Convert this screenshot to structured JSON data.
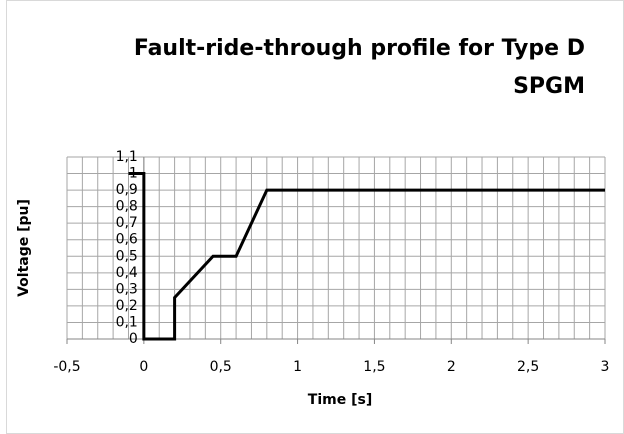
{
  "chart_data": {
    "type": "line",
    "title": "Fault-ride-through profile for  Type D SPGM",
    "x_label": "Time [s]",
    "y_label": "Voltage [pu]",
    "series": [
      {
        "name": "Voltage",
        "color": "#000000",
        "x": [
          -0.1,
          0,
          0,
          0.2,
          0.2,
          0.45,
          0.6,
          0.8,
          3
        ],
        "values": [
          1,
          1,
          0,
          0,
          0.25,
          0.5,
          0.5,
          0.9,
          0.9
        ]
      }
    ],
    "xlim": [
      -0.5,
      3
    ],
    "xticks": [
      {
        "value": -0.5,
        "label": "-0,5"
      },
      0,
      {
        "value": 0.5,
        "label": "0,5"
      },
      1,
      {
        "value": 1.5,
        "label": "1,5"
      },
      2,
      {
        "value": 2.5,
        "label": "2,5"
      },
      3
    ],
    "xminorticks": [
      -0.5,
      -0.4,
      -0.3,
      -0.2,
      -0.1,
      0,
      0.1,
      0.2,
      0.3,
      0.4,
      0.5,
      0.6,
      0.7,
      0.8,
      0.9,
      1,
      1.1,
      1.2,
      1.3,
      1.4,
      1.5,
      1.6,
      1.7,
      1.8,
      1.9,
      2,
      2.1,
      2.2,
      2.3,
      2.4,
      2.5,
      2.6,
      2.7,
      2.8,
      2.9,
      3
    ],
    "ylim": [
      0,
      1.1
    ],
    "yticks": [
      0,
      {
        "value": 0.1,
        "label": "0,1"
      },
      {
        "value": 0.2,
        "label": "0,2"
      },
      {
        "value": 0.3,
        "label": "0,3"
      },
      {
        "value": 0.4,
        "label": "0,4"
      },
      {
        "value": 0.5,
        "label": "0,5"
      },
      {
        "value": 0.6,
        "label": "0,6"
      },
      {
        "value": 0.7,
        "label": "0,7"
      },
      {
        "value": 0.8,
        "label": "0,8"
      },
      {
        "value": 0.9,
        "label": "0,9"
      },
      1,
      {
        "value": 1.1,
        "label": "1,1"
      }
    ],
    "grid": true
  }
}
